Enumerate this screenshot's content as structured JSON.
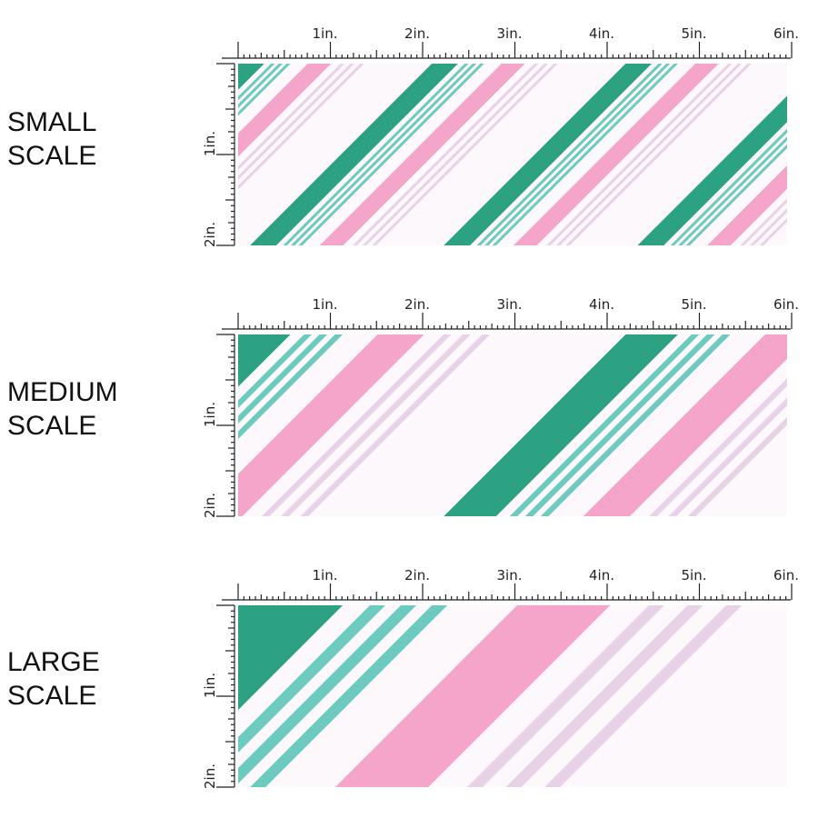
{
  "colors": {
    "background": "#fdf8fc",
    "dark_green": "#2ca283",
    "teal": "#6ccabf",
    "pink": "#f4a5c9",
    "lavender": "#e8d2e8",
    "ruler": "#222222"
  },
  "ruler": {
    "horizontal_labels": [
      "1in.",
      "2in.",
      "3in.",
      "4in.",
      "5in.",
      "6in."
    ],
    "vertical_labels": [
      "1in.",
      "2in."
    ]
  },
  "pattern": {
    "name": "diagonal stripes",
    "stripe_sequence": [
      "dark_green",
      "teal",
      "teal",
      "teal",
      "pink",
      "lavender",
      "lavender",
      "lavender"
    ]
  },
  "panels": [
    {
      "id": "small",
      "label_line1": "SMALL",
      "label_line2": "SCALE",
      "pattern_repeat_in": 2.1
    },
    {
      "id": "medium",
      "label_line1": "MEDIUM",
      "label_line2": "SCALE",
      "pattern_repeat_in": 4.2
    },
    {
      "id": "large",
      "label_line1": "LARGE",
      "label_line2": "SCALE",
      "pattern_repeat_in": 8.4
    }
  ]
}
